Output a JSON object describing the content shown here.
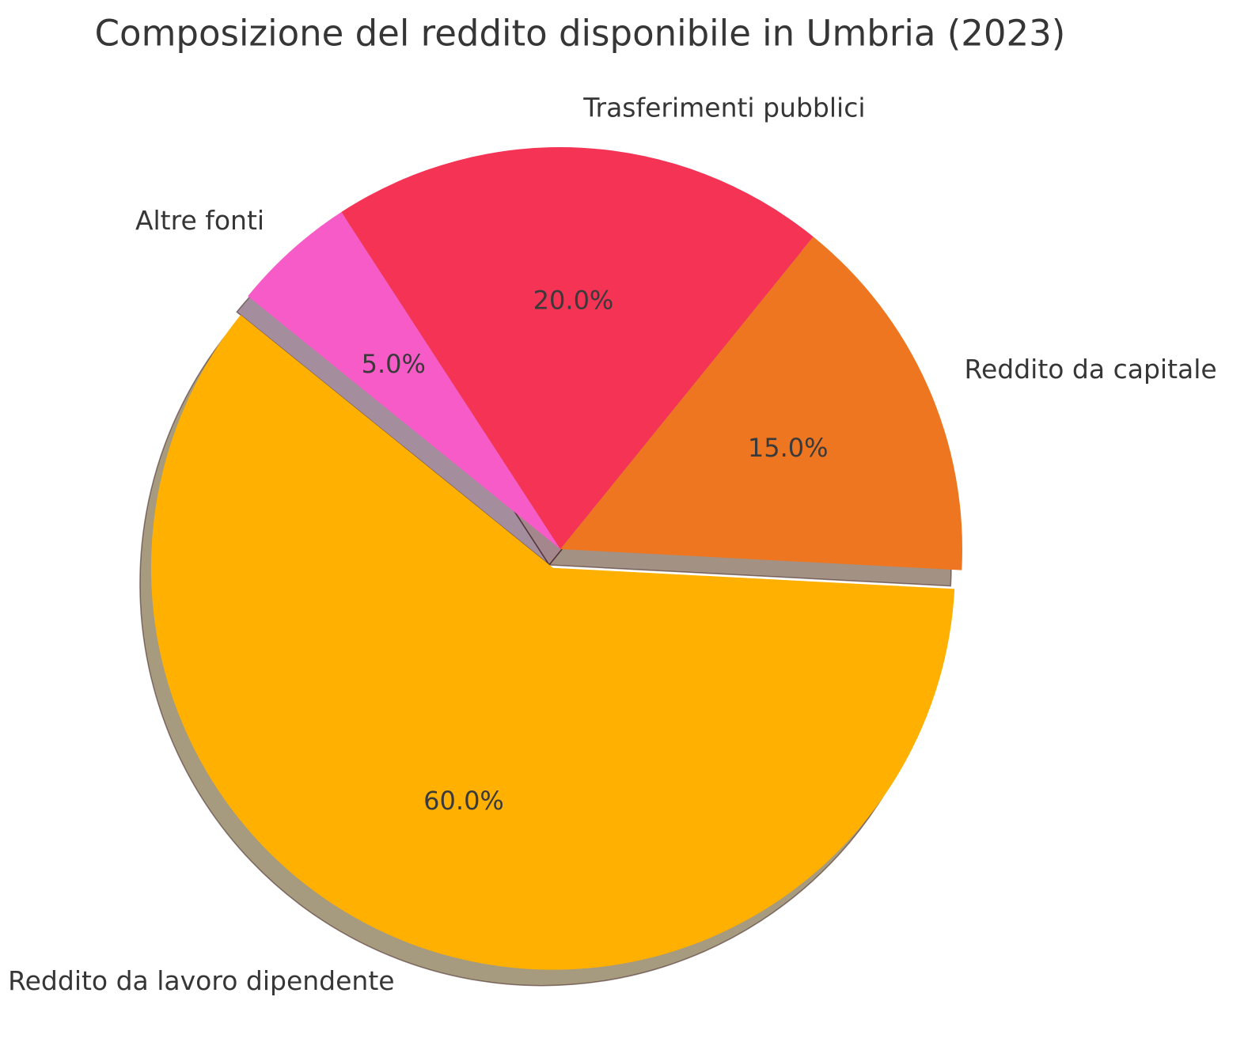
{
  "chart_data": {
    "type": "pie",
    "title": "Composizione del reddito disponibile in Umbria (2023)",
    "start_angle_deg": -3,
    "counterclockwise": true,
    "shadow": true,
    "legend": "none",
    "label_distance": 1.1,
    "pct_distance": 0.62,
    "slices": [
      {
        "label": "Reddito da capitale",
        "value": 15.0,
        "pct_label": "15.0%",
        "color": "#EE7621",
        "explode": 0.0
      },
      {
        "label": "Trasferimenti pubblici",
        "value": 20.0,
        "pct_label": "20.0%",
        "color": "#F43355",
        "explode": 0.0
      },
      {
        "label": "Altre fonti",
        "value": 5.0,
        "pct_label": "5.0%",
        "color": "#F75BC8",
        "explode": 0.0
      },
      {
        "label": "Reddito da lavoro dipendente",
        "value": 60.0,
        "pct_label": "60.0%",
        "color": "#FFB000",
        "explode": 0.05
      }
    ],
    "text_color": "#363636",
    "background_color": "#ffffff"
  }
}
